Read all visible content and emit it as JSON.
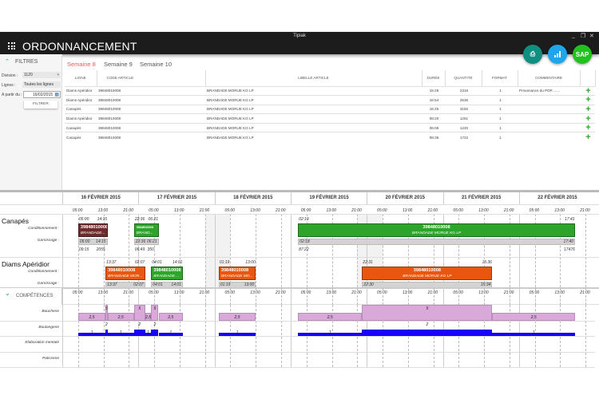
{
  "window": {
    "title": "Tipiak",
    "controls": [
      "_",
      "❐",
      "✕"
    ]
  },
  "app": {
    "title": "ORDONNANCEMENT",
    "actions": [
      {
        "icon": "print-icon",
        "glyph": "⎙",
        "color": "#0e8f80"
      },
      {
        "icon": "chart-icon",
        "glyph": "📶",
        "color": "#1ea6ea"
      },
      {
        "icon": "sap-icon",
        "label": "SAP",
        "color": "#22c21e"
      }
    ]
  },
  "filters": {
    "title": "FILTRES",
    "division_label": "Division :",
    "division_value": "1120",
    "lignes_label": "Lignes :",
    "lignes_value": "Toutes les lignes",
    "date_label": "A partir du :",
    "date_value": "16/02/2015",
    "button": "FILTRER"
  },
  "tabs": [
    {
      "label": "Semaine 8",
      "active": true
    },
    {
      "label": "Semaine 9"
    },
    {
      "label": "Semaine 10"
    }
  ],
  "table": {
    "headers": [
      "LIGNE",
      "CODE ARTICLE",
      "LIBELLÉ ARTICLE",
      "DURÉE",
      "QUANTITÉ",
      "FORMAT",
      "COMMENTAIRE",
      ""
    ],
    "rows": [
      [
        "Diams Apéridior",
        "39848010008",
        "BRANDADE MORUE KG LP",
        "15:26",
        "2316",
        "1",
        "Provenance du PDP........"
      ],
      [
        "Diams Apéridior",
        "39848010008",
        "BRANDADE MORUE KG LP",
        "16:54",
        "2536",
        "1",
        ""
      ],
      [
        "Canapés",
        "39848010008",
        "BRANDADE MORUE KG LP",
        "15:45",
        "3150",
        "1",
        ""
      ],
      [
        "Diams Apéridior",
        "39848010008",
        "BRANDADE MORUE KG LP",
        "08:20",
        "1251",
        "1",
        ""
      ],
      [
        "Canapés",
        "39848010008",
        "BRANDADE MORUE KG LP",
        "06:06",
        "1220",
        "1",
        ""
      ],
      [
        "Canapés",
        "39848010008",
        "BRANDADE MORUE KG LP",
        "08:36",
        "1722",
        "1",
        ""
      ]
    ]
  },
  "gantt": {
    "days": [
      "16 FÉVRIER 2015",
      "17 FÉVRIER 2015",
      "18 FÉVRIER 2015",
      "19 FÉVRIER 2015",
      "20 FÉVRIER 2015",
      "21 FÉVRIER 2015",
      "22 FÉVRIER 2015"
    ],
    "hours": [
      "05:00",
      "13:00",
      "21:00"
    ],
    "colors": {
      "brown": "#6e2b2b",
      "green": "#2ea42a",
      "orange": "#e8560f",
      "garn": "#d3d3d3"
    },
    "lines": [
      {
        "name": "Canapés",
        "cond_label": "Conditionnement :",
        "garn_label": "Garnissage :",
        "bars": [
          {
            "start": "16 05:00",
            "end": "16 14:15",
            "code": "39848010008",
            "name": "BRANDADE...",
            "color": "brown",
            "cond_times": [
              "05:00",
              "14:15"
            ],
            "garn_times": [
              "05:00",
              "14:15"
            ],
            "stats": [
              "09:15",
              "2055"
            ]
          },
          {
            "start": "16 22:36",
            "end": "17 06:21",
            "code": "39848010008",
            "name": "BRAND...",
            "color": "green",
            "cond_times": [
              "22:36",
              "06:21"
            ],
            "garn_times": [
              "22:36",
              "06:21"
            ],
            "stats": [
              "06:49",
              "350"
            ]
          },
          {
            "start": "19 02:19",
            "end": "22 17:41",
            "code": "39848010008",
            "name": "BRANDADE MORUE KG LP",
            "color": "green",
            "cond_times": [
              "02:19",
              "17:41"
            ],
            "garn_times": [
              "02:18",
              "17:40"
            ],
            "stats": [
              "87:22",
              "17476"
            ]
          }
        ]
      },
      {
        "name": "Diams Apéridior",
        "cond_label": "Conditionnement :",
        "garn_label": "Garnissage :",
        "bars": [
          {
            "start": "16 13:37",
            "end": "17 02:07",
            "code": "39848010008",
            "name": "BRANDADE MOR...",
            "color": "orange",
            "cond_times": [
              "13:37",
              "02:07"
            ],
            "garn_times": [
              "13:37",
              "02:07"
            ]
          },
          {
            "start": "17 04:01",
            "end": "17 14:01",
            "code": "39848010008",
            "name": "BRANDADE ...",
            "color": "green",
            "cond_times": [
              "04:01",
              "14:01"
            ],
            "garn_times": [
              "04:01",
              "14:01"
            ]
          },
          {
            "start": "18 01:19",
            "end": "18 13:00",
            "code": "39848010008",
            "name": "BRANDADE MO...",
            "color": "orange",
            "cond_times": [
              "01:19",
              "13:00"
            ],
            "garn_times": [
              "01:19",
              "13:00"
            ]
          },
          {
            "start": "19 22:31",
            "end": "21 15:36",
            "code": "39848010008",
            "name": "BRANDADE MORUE KG LP",
            "color": "orange",
            "cond_times": [
              "22:31",
              "15:36"
            ],
            "garn_times": [
              "22:30",
              "15:34"
            ]
          }
        ]
      }
    ]
  },
  "competences": {
    "title": "COMPÉTENCES",
    "max": 5,
    "rows": [
      {
        "name": "Boucherie",
        "color": "#d9a9d9",
        "segments": [
          [
            "16 05:00",
            "16 13:37",
            "2,5",
            2.5
          ],
          [
            "16 13:37",
            "16 14:15",
            "5",
            5
          ],
          [
            "16 14:15",
            "16 22:36",
            "2,5",
            2.5
          ],
          [
            "16 22:36",
            "17 02:07",
            "5",
            5
          ],
          [
            "17 02:07",
            "17 04:01",
            "2,5",
            2.5
          ],
          [
            "17 04:01",
            "17 06:21",
            "5",
            5
          ],
          [
            "17 06:21",
            "17 14:01",
            "2,5",
            2.5
          ],
          [
            "18 01:19",
            "18 13:00",
            "2,5",
            2.5
          ],
          [
            "19 02:19",
            "19 22:31",
            "2,5",
            2.5
          ],
          [
            "19 22:31",
            "21 15:36",
            "5",
            5
          ],
          [
            "21 15:36",
            "22 17:41",
            "2,5",
            2.5
          ]
        ]
      },
      {
        "name": "Boulangerie",
        "color": "#1a00ff",
        "segments": [
          [
            "16 05:00",
            "16 13:37",
            "1",
            1
          ],
          [
            "16 13:37",
            "16 14:15",
            "2",
            2
          ],
          [
            "16 14:15",
            "16 22:36",
            "1",
            1
          ],
          [
            "16 22:36",
            "17 02:07",
            "2",
            2
          ],
          [
            "17 02:07",
            "17 04:01",
            "1",
            1
          ],
          [
            "17 04:01",
            "17 06:21",
            "2",
            2
          ],
          [
            "17 06:21",
            "17 14:01",
            "1",
            1
          ],
          [
            "18 01:19",
            "18 13:00",
            "1",
            1
          ],
          [
            "19 02:19",
            "19 22:31",
            "1",
            1
          ],
          [
            "19 22:31",
            "21 15:36",
            "2",
            2
          ],
          [
            "21 15:36",
            "22 17:41",
            "1",
            1
          ]
        ]
      },
      {
        "name": "Elaboration mentale",
        "segments": []
      },
      {
        "name": "Patisserie",
        "segments": []
      }
    ]
  }
}
